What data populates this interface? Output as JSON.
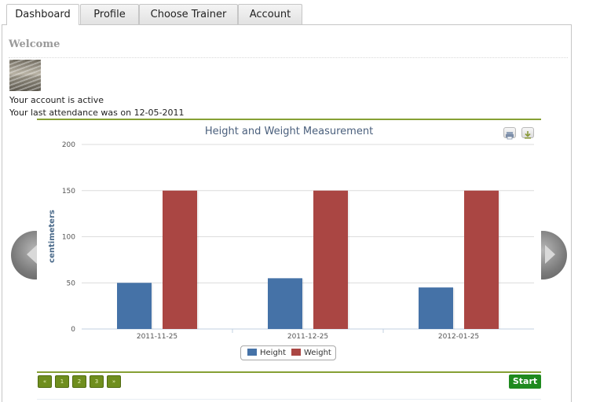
{
  "tabs": [
    {
      "label": "Dashboard",
      "active": true
    },
    {
      "label": "Profile",
      "active": false
    },
    {
      "label": "Choose Trainer",
      "active": false
    },
    {
      "label": "Account",
      "active": false
    }
  ],
  "welcome": {
    "heading": "Welcome",
    "account_status": "Your account is active",
    "last_attendance": "Your last attendance was on 12-05-2011"
  },
  "chart_data": {
    "type": "bar",
    "title": "Height and Weight Measurement",
    "ylabel": "centimeters",
    "xlabel": "",
    "categories": [
      "2011-11-25",
      "2011-12-25",
      "2012-01-25"
    ],
    "series": [
      {
        "name": "Height",
        "values": [
          50,
          55,
          45
        ],
        "color": "#4572a7"
      },
      {
        "name": "Weight",
        "values": [
          150,
          150,
          150
        ],
        "color": "#aa4643"
      }
    ],
    "ylim": [
      0,
      200
    ],
    "yticks": [
      0,
      50,
      100,
      150,
      200
    ],
    "grid": true,
    "legend": "bottom-center"
  },
  "chart_toolbar": {
    "print_icon": "printer-icon",
    "export_icon": "download-icon"
  },
  "carousel": {
    "prev_icon": "chevron-left-icon",
    "next_icon": "chevron-right-icon"
  },
  "pager": {
    "first_label": "«",
    "pages": [
      "1",
      "2",
      "3"
    ],
    "last_label": "»",
    "start_label": "Start"
  }
}
